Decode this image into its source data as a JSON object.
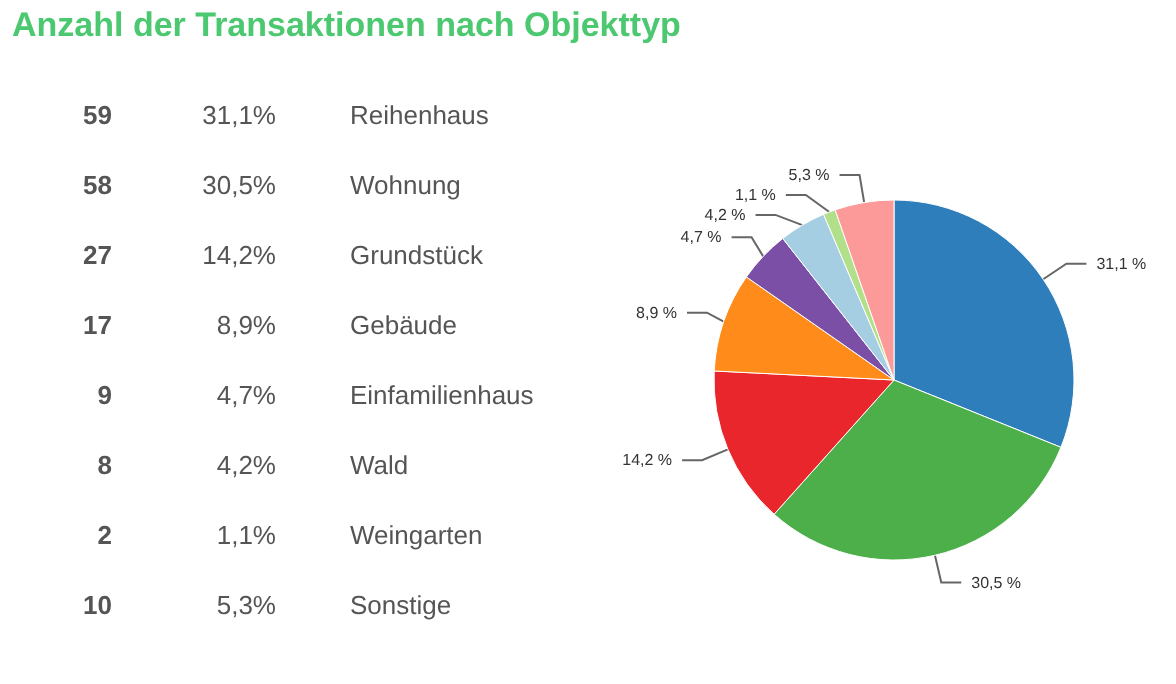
{
  "chart_data": [
    {
      "type": "other",
      "title": "Anzahl der Transaktionen nach Objekttyp",
      "annotations": [
        "59",
        "31,1%",
        "Reihenhaus",
        "58",
        "30,5%",
        "Wohnung",
        "27",
        "14,2%",
        "Grundstück",
        "17",
        "8,9%",
        "Gebäude",
        "9",
        "4,7%",
        "Einfamilienhaus",
        "8",
        "4,2%",
        "Wald",
        "2",
        "1,1%",
        "Weingarten",
        "10",
        "5,3%",
        "Sonstige"
      ]
    },
    {
      "type": "pie",
      "categories": [
        null,
        null,
        null,
        null,
        null,
        null,
        null,
        null
      ],
      "values": [
        31.1,
        30.5,
        14.2,
        8.9,
        4.7,
        4.2,
        1.1,
        5.3
      ],
      "value_labels": [
        "31,1 %",
        "30,5 %",
        "14,2 %",
        "8,9 %",
        "4,7 %",
        "4,2 %",
        "1,1 %",
        "5,3 %"
      ],
      "colors": [
        "#2f7ebc",
        "#4daf4a",
        "#e8262b",
        "#ff8c1a",
        "#7b4fa6",
        "#a6cee3",
        "#b2df8a",
        "#fb9a99"
      ]
    }
  ]
}
